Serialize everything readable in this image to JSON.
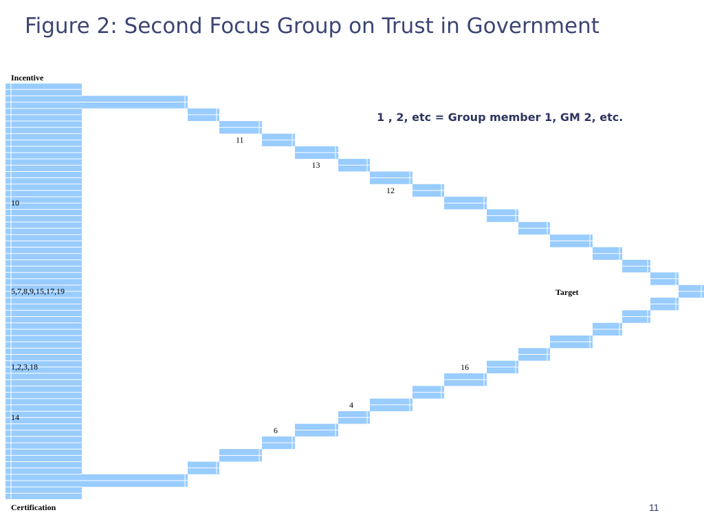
{
  "title": "Figure 2: Second Focus Group on Trust in Government",
  "note": "1 , 2, etc = Group member 1, GM 2, etc.",
  "page_number": "11",
  "axis": {
    "top_label": "Incentive",
    "bottom_label": "Certification",
    "target_label": "Target"
  },
  "column_labels": [
    {
      "row": 9,
      "text": "10"
    },
    {
      "row": 16,
      "text": "5,7,8,9,15,17,19"
    },
    {
      "row": 22,
      "text": "1,2,3,18"
    },
    {
      "row": 26,
      "text": "14"
    }
  ],
  "upper_labels": [
    {
      "step": 2,
      "text": "11"
    },
    {
      "step": 4,
      "text": "13"
    },
    {
      "step": 6,
      "text": "12"
    }
  ],
  "lower_labels": [
    {
      "step": 3,
      "text": "6"
    },
    {
      "step": 5,
      "text": "4"
    },
    {
      "step": 8,
      "text": "16"
    }
  ],
  "colors": {
    "cell_fill": "#99ccff",
    "cell_line": "#ffffff",
    "title": "#3c4573"
  }
}
